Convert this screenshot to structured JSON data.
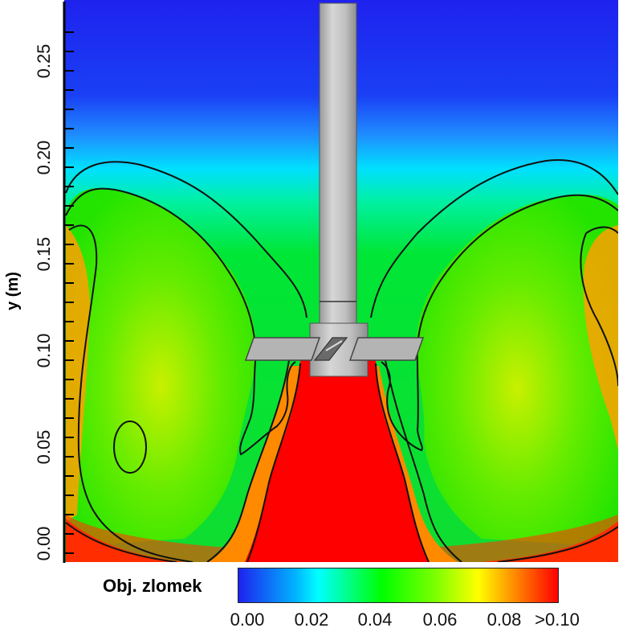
{
  "chart_data": {
    "type": "heatmap",
    "ylabel": "y (m)",
    "y_ticks": [
      0.0,
      0.05,
      0.1,
      0.15,
      0.2,
      0.25
    ],
    "y_tick_labels": [
      "0.00",
      "0.05",
      "0.10",
      "0.15",
      "0.20",
      "0.25"
    ],
    "colorbar": {
      "title": "Obj. zlomek",
      "range": [
        0.0,
        0.1
      ],
      "tick_labels": [
        "0.00",
        "0.02",
        "0.04",
        "0.06",
        "0.08",
        ">0.10"
      ],
      "colors": [
        "#1e22ee",
        "#00ffff",
        "#00ff00",
        "#ffff00",
        "#ff0000"
      ]
    }
  }
}
